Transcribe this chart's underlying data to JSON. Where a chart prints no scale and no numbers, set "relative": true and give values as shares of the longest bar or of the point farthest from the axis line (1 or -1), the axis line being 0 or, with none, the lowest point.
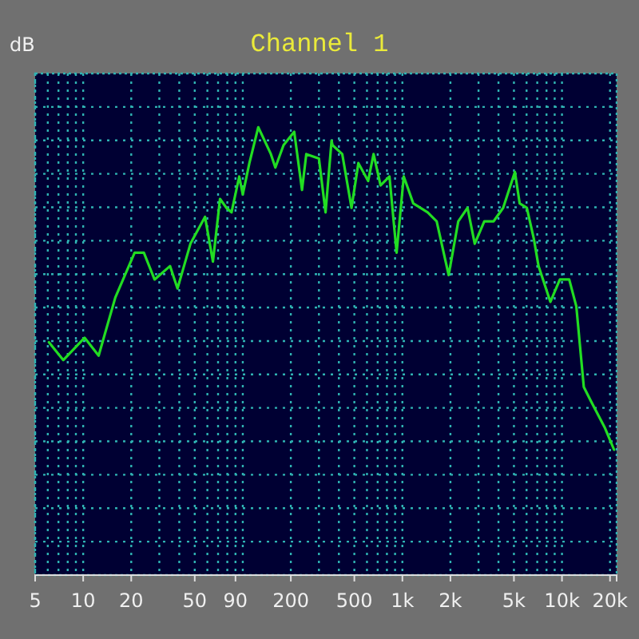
{
  "chart_data": {
    "type": "line",
    "title": "Channel 1",
    "ylabel": "dB",
    "relative": true,
    "log": "x",
    "grid": true,
    "marker": "none",
    "line_style": "solid",
    "xlim": [
      5,
      22000
    ],
    "xticks": [
      5,
      {
        "value": 6,
        "label": null
      },
      {
        "value": 7,
        "label": null
      },
      {
        "value": 8,
        "label": null
      },
      {
        "value": 9,
        "label": null
      },
      10,
      20,
      {
        "value": 30,
        "label": null
      },
      {
        "value": 40,
        "label": null
      },
      50,
      {
        "value": 60,
        "label": null
      },
      {
        "value": 70,
        "label": null
      },
      {
        "value": 80,
        "label": null
      },
      90,
      {
        "value": 100,
        "label": null
      },
      200,
      {
        "value": 300,
        "label": null
      },
      {
        "value": 400,
        "label": null
      },
      500,
      {
        "value": 600,
        "label": null
      },
      {
        "value": 700,
        "label": null
      },
      {
        "value": 800,
        "label": null
      },
      {
        "value": 900,
        "label": null
      },
      {
        "value": 1000,
        "label": "1k"
      },
      {
        "value": 2000,
        "label": "2k"
      },
      {
        "value": 3000,
        "label": null
      },
      {
        "value": 4000,
        "label": null
      },
      {
        "value": 5000,
        "label": "5k"
      },
      {
        "value": 6000,
        "label": null
      },
      {
        "value": 7000,
        "label": null
      },
      {
        "value": 8000,
        "label": null
      },
      {
        "value": 9000,
        "label": null
      },
      {
        "value": 10000,
        "label": "10k"
      },
      {
        "value": 20000,
        "label": "20k"
      }
    ],
    "series": [
      {
        "color": "#22dd22",
        "x": [
          6.1,
          7.5,
          10.2,
          12.5,
          15.9,
          21,
          24,
          28,
          35,
          39,
          47,
          58,
          65,
          72,
          79,
          85,
          95,
          100,
          110,
          125,
          150,
          160,
          180,
          210,
          235,
          250,
          300,
          330,
          360,
          365,
          420,
          480,
          530,
          610,
          660,
          730,
          830,
          920,
          1020,
          1170,
          1440,
          1640,
          1950,
          2240,
          2560,
          2840,
          3260,
          3730,
          4280,
          5070,
          5430,
          6020,
          6670,
          7130,
          8460,
          9700,
          11100,
          12300,
          13700,
          15100,
          18500,
          21200
        ],
        "values": [
          0.52,
          0.48,
          0.53,
          0.49,
          0.62,
          0.72,
          0.72,
          0.66,
          0.69,
          0.64,
          0.74,
          0.8,
          0.7,
          0.84,
          0.82,
          0.81,
          0.89,
          0.85,
          0.92,
          1.0,
          0.94,
          0.91,
          0.96,
          0.99,
          0.86,
          0.94,
          0.93,
          0.81,
          0.97,
          0.96,
          0.94,
          0.82,
          0.92,
          0.88,
          0.94,
          0.87,
          0.89,
          0.72,
          0.89,
          0.83,
          0.81,
          0.79,
          0.67,
          0.79,
          0.82,
          0.74,
          0.79,
          0.79,
          0.82,
          0.9,
          0.83,
          0.82,
          0.75,
          0.69,
          0.61,
          0.66,
          0.66,
          0.6,
          0.42,
          0.39,
          0.33,
          0.28
        ]
      }
    ]
  }
}
